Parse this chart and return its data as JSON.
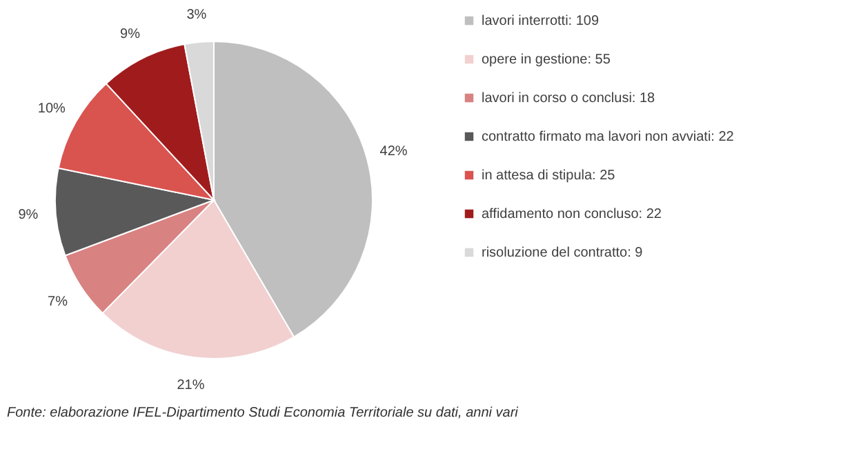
{
  "chart_data": {
    "type": "pie",
    "categories": [
      "lavori interrotti: 109",
      "opere in gestione: 55",
      "lavori in corso o conclusi: 18",
      "contratto firmato ma lavori non avviati: 22",
      "in attesa di stipula: 25",
      "affidamento non concluso: 22",
      "risoluzione del contratto: 9"
    ],
    "values": [
      42,
      21,
      7,
      9,
      10,
      9,
      3
    ],
    "value_labels": [
      "42%",
      "21%",
      "7%",
      "9%",
      "10%",
      "9%",
      "3%"
    ],
    "colors": [
      "#bfbfbf",
      "#f2d0d0",
      "#d98282",
      "#595959",
      "#d9534f",
      "#a01c1c",
      "#d9d9d9"
    ],
    "legend": "right",
    "annotations": [
      "Fonte: elaborazione IFEL-Dipartimento Studi Economia Territoriale su dati, anni vari"
    ]
  }
}
